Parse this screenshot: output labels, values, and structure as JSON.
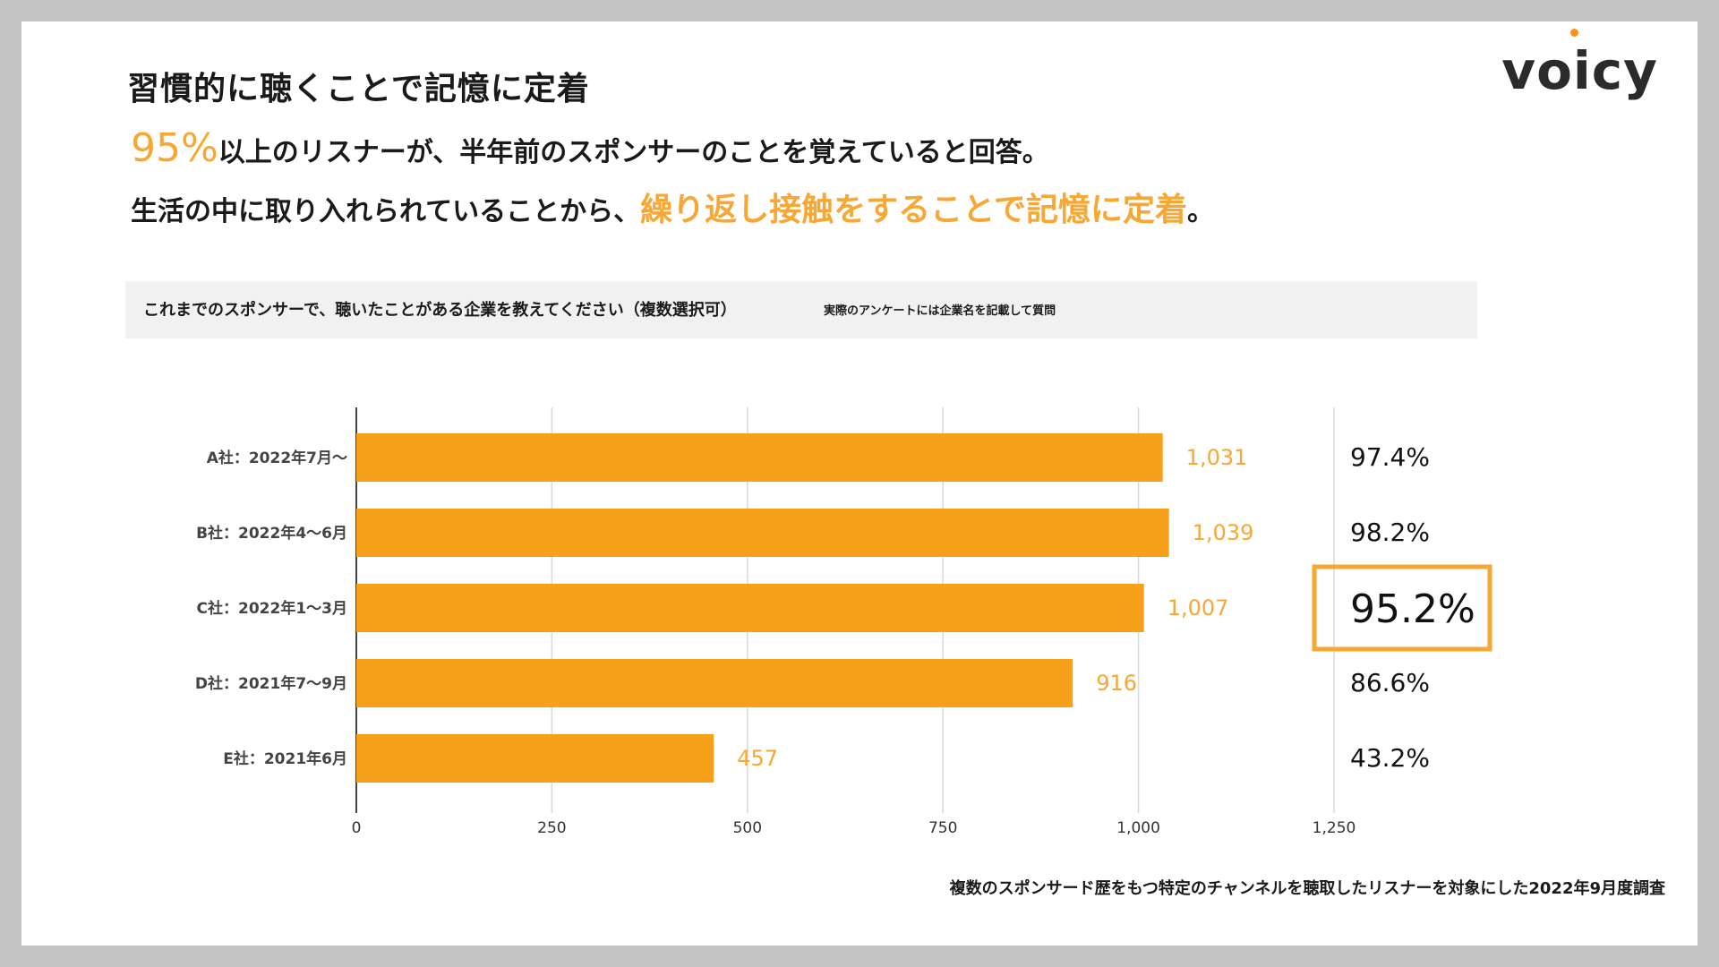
{
  "title": "習慣的に聴くことで記憶に定着",
  "logo": "voicy",
  "lead": {
    "line1_highlight": "95%",
    "line1_text": "以上のリスナーが、半年前のスポンサーのことを覚えていると回答。",
    "line2_text": "生活の中に取り入れられていることから、",
    "line2_highlight": "繰り返し接触をすることで記憶に定着",
    "line2_end": "。"
  },
  "question": {
    "main": "これまでのスポンサーで、聴いたことがある企業を教えてください（複数選択可）",
    "note": "実際のアンケートには企業名を記載して質問"
  },
  "footnote": "複数のスポンサード歴をもつ特定のチャンネルを聴取したリスナーを対象にした2022年9月度調査",
  "colors": {
    "bar": "#f7a01a",
    "highlight_text": "#f7a733",
    "value_label": "#f7a733",
    "box_border": "#f7a733"
  },
  "chart_data": {
    "type": "bar",
    "orientation": "horizontal",
    "categories": [
      "A社：2022年7月〜",
      "B社：2022年4〜6月",
      "C社：2022年1〜3月",
      "D社：2021年7〜9月",
      "E社：2021年6月"
    ],
    "values": [
      1031,
      1039,
      1007,
      916,
      457
    ],
    "value_labels": [
      "1,031",
      "1,039",
      "1,007",
      "916",
      "457"
    ],
    "percentages": [
      "97.4%",
      "98.2%",
      "95.2%",
      "86.6%",
      "43.2%"
    ],
    "highlighted_index": 2,
    "xlim": [
      0,
      1250
    ],
    "xticks": [
      0,
      250,
      500,
      750,
      1000,
      1250
    ],
    "xtick_labels": [
      "0",
      "250",
      "500",
      "750",
      "1,000",
      "1,250"
    ],
    "grid": true,
    "title": "",
    "xlabel": "",
    "ylabel": ""
  }
}
